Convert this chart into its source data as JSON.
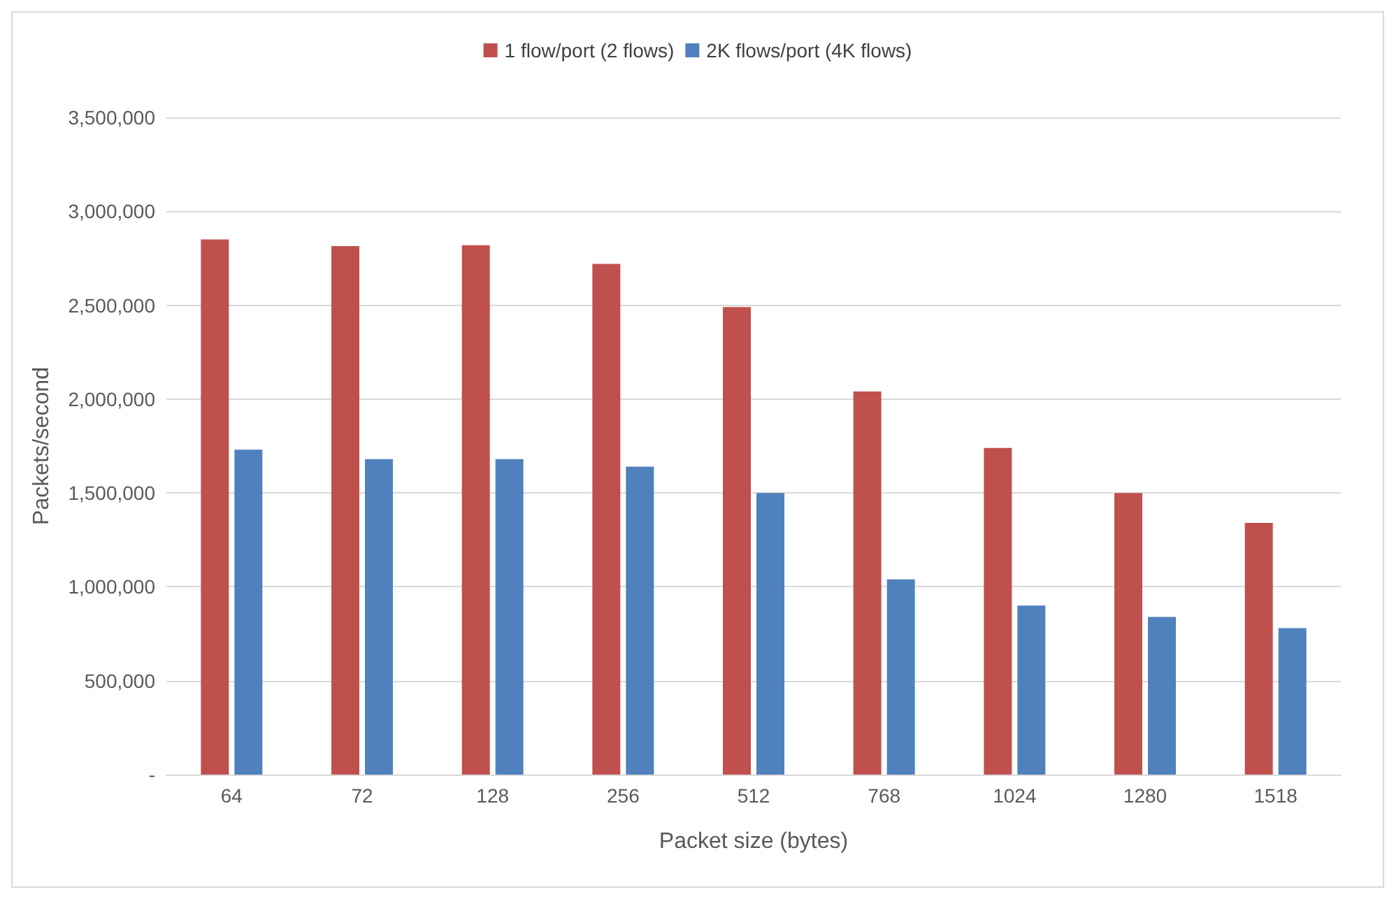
{
  "chart_data": {
    "type": "bar",
    "xlabel": "Packet size (bytes)",
    "ylabel": "Packets/second",
    "categories": [
      "64",
      "72",
      "128",
      "256",
      "512",
      "768",
      "1024",
      "1280",
      "1518"
    ],
    "series": [
      {
        "name": "1 flow/port (2 flows)",
        "color": "#c0504d",
        "values": [
          2850000,
          2815000,
          2820000,
          2720000,
          2490000,
          2040000,
          1740000,
          1500000,
          1340000
        ]
      },
      {
        "name": "2K flows/port (4K flows)",
        "color": "#4f81bd",
        "values": [
          1730000,
          1680000,
          1680000,
          1640000,
          1500000,
          1040000,
          900000,
          840000,
          780000
        ]
      }
    ],
    "ylim": [
      0,
      3500000
    ],
    "yticks": [
      {
        "value": 0,
        "label": "-"
      },
      {
        "value": 500000,
        "label": "500,000"
      },
      {
        "value": 1000000,
        "label": "1,000,000"
      },
      {
        "value": 1500000,
        "label": "1,500,000"
      },
      {
        "value": 2000000,
        "label": "2,000,000"
      },
      {
        "value": 2500000,
        "label": "2,500,000"
      },
      {
        "value": 3000000,
        "label": "3,000,000"
      },
      {
        "value": 3500000,
        "label": "3,500,000"
      }
    ],
    "grid": "y",
    "legend": "top"
  }
}
